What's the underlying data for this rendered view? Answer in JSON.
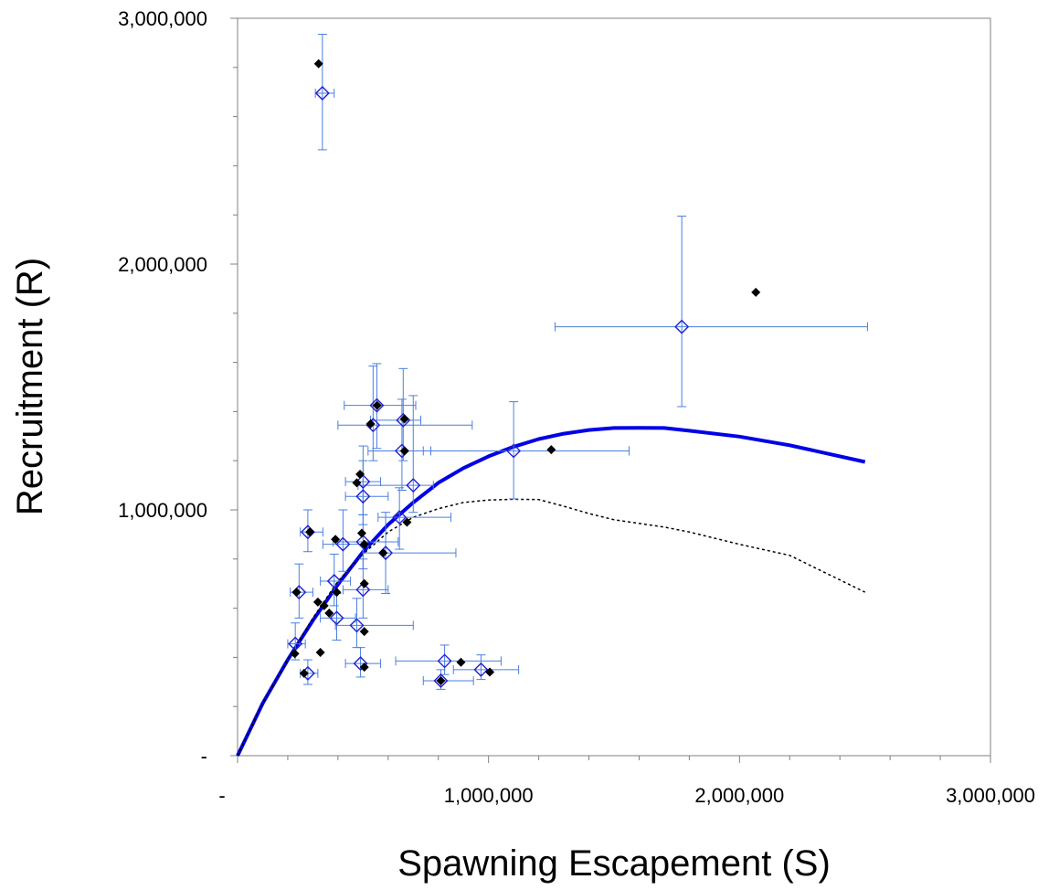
{
  "chart_data": {
    "type": "scatter",
    "xlabel": "Spawning Escapement (S)",
    "ylabel": "Recruitment (R)",
    "xlim": [
      0,
      3000000
    ],
    "ylim": [
      0,
      3000000
    ],
    "x_major_ticks": [
      0,
      1000000,
      2000000,
      3000000
    ],
    "x_tick_labels": [
      "-",
      "1,000,000",
      "2,000,000",
      "3,000,000"
    ],
    "y_major_ticks": [
      0,
      1000000,
      2000000,
      3000000
    ],
    "y_tick_labels": [
      "-",
      "1,000,000",
      "2,000,000",
      "3,000,000"
    ],
    "minor_tick_step": 200000,
    "grid": false,
    "legend": "none",
    "colors": {
      "observed": "#000000",
      "estimated": "#1f1fd6",
      "error_bars": "#4a7fe0",
      "fit_line": "#0000e6",
      "dashed_line": "#000000"
    },
    "series": [
      {
        "role": "observed",
        "marker": "filled-diamond",
        "points": [
          [
            323000,
            2815000
          ],
          [
            2065000,
            1885000
          ],
          [
            1250000,
            1245000
          ],
          [
            556000,
            1425000
          ],
          [
            530000,
            1350000
          ],
          [
            665000,
            1370000
          ],
          [
            665000,
            1240000
          ],
          [
            488000,
            1145000
          ],
          [
            475000,
            1110000
          ],
          [
            675000,
            950000
          ],
          [
            288000,
            910000
          ],
          [
            495000,
            905000
          ],
          [
            390000,
            880000
          ],
          [
            505000,
            860000
          ],
          [
            580000,
            825000
          ],
          [
            505000,
            700000
          ],
          [
            235000,
            665000
          ],
          [
            395000,
            665000
          ],
          [
            320000,
            625000
          ],
          [
            345000,
            610000
          ],
          [
            365000,
            580000
          ],
          [
            505000,
            505000
          ],
          [
            330000,
            420000
          ],
          [
            228000,
            415000
          ],
          [
            890000,
            380000
          ],
          [
            505000,
            360000
          ],
          [
            265000,
            335000
          ],
          [
            1005000,
            340000
          ],
          [
            810000,
            305000
          ]
        ]
      },
      {
        "role": "estimated",
        "marker": "open-diamond",
        "points": [
          {
            "x": 338000,
            "y": 2695000,
            "xerr": [
              310000,
              385000
            ],
            "yerr": [
              2465000,
              2935000
            ]
          },
          {
            "x": 1770000,
            "y": 1745000,
            "xerr": [
              1265000,
              2510000
            ],
            "yerr": [
              1420000,
              2195000
            ]
          },
          {
            "x": 1100000,
            "y": 1240000,
            "xerr": [
              740000,
              1560000
            ],
            "yerr": [
              1045000,
              1440000
            ]
          },
          {
            "x": 555000,
            "y": 1425000,
            "xerr": [
              425000,
              710000
            ],
            "yerr": [
              1250000,
              1595000
            ]
          },
          {
            "x": 540000,
            "y": 1345000,
            "xerr": [
              400000,
              935000
            ],
            "yerr": [
              1200000,
              1585000
            ]
          },
          {
            "x": 660000,
            "y": 1365000,
            "xerr": [
              530000,
              730000
            ],
            "yerr": [
              1200000,
              1575000
            ]
          },
          {
            "x": 655000,
            "y": 1240000,
            "xerr": [
              520000,
              770000
            ],
            "yerr": [
              1080000,
              1450000
            ]
          },
          {
            "x": 700000,
            "y": 1100000,
            "xerr": [
              480000,
              780000
            ],
            "yerr": [
              990000,
              1465000
            ]
          },
          {
            "x": 500000,
            "y": 1115000,
            "xerr": [
              430000,
              570000
            ],
            "yerr": [
              980000,
              1260000
            ]
          },
          {
            "x": 500000,
            "y": 1055000,
            "xerr": [
              430000,
              600000
            ],
            "yerr": [
              940000,
              1200000
            ]
          },
          {
            "x": 645000,
            "y": 970000,
            "xerr": [
              560000,
              850000
            ],
            "yerr": [
              840000,
              1090000
            ]
          },
          {
            "x": 280000,
            "y": 910000,
            "xerr": [
              250000,
              340000
            ],
            "yerr": [
              830000,
              1000000
            ]
          },
          {
            "x": 500000,
            "y": 870000,
            "xerr": [
              380000,
              640000
            ],
            "yerr": [
              760000,
              980000
            ]
          },
          {
            "x": 420000,
            "y": 860000,
            "xerr": [
              340000,
              520000
            ],
            "yerr": [
              750000,
              1000000
            ]
          },
          {
            "x": 590000,
            "y": 825000,
            "xerr": [
              500000,
              870000
            ],
            "yerr": [
              660000,
              990000
            ]
          },
          {
            "x": 385000,
            "y": 710000,
            "xerr": [
              330000,
              450000
            ],
            "yerr": [
              610000,
              820000
            ]
          },
          {
            "x": 500000,
            "y": 675000,
            "xerr": [
              420000,
              600000
            ],
            "yerr": [
              560000,
              800000
            ]
          },
          {
            "x": 245000,
            "y": 665000,
            "xerr": [
              210000,
              300000
            ],
            "yerr": [
              560000,
              780000
            ]
          },
          {
            "x": 395000,
            "y": 560000,
            "xerr": [
              330000,
              470000
            ],
            "yerr": [
              470000,
              660000
            ]
          },
          {
            "x": 475000,
            "y": 530000,
            "xerr": [
              390000,
              700000
            ],
            "yerr": [
              440000,
              640000
            ]
          },
          {
            "x": 230000,
            "y": 455000,
            "xerr": [
              200000,
              270000
            ],
            "yerr": [
              390000,
              540000
            ]
          },
          {
            "x": 825000,
            "y": 385000,
            "xerr": [
              630000,
              1050000
            ],
            "yerr": [
              330000,
              450000
            ]
          },
          {
            "x": 490000,
            "y": 375000,
            "xerr": [
              430000,
              570000
            ],
            "yerr": [
              320000,
              440000
            ]
          },
          {
            "x": 970000,
            "y": 350000,
            "xerr": [
              860000,
              1120000
            ],
            "yerr": [
              310000,
              410000
            ]
          },
          {
            "x": 280000,
            "y": 335000,
            "xerr": [
              250000,
              320000
            ],
            "yerr": [
              290000,
              390000
            ]
          },
          {
            "x": 810000,
            "y": 305000,
            "xerr": [
              740000,
              940000
            ],
            "yerr": [
              270000,
              350000
            ]
          }
        ]
      }
    ],
    "curves": [
      {
        "role": "fit",
        "style": "solid",
        "points": [
          [
            0,
            0
          ],
          [
            100000,
            213000
          ],
          [
            200000,
            390000
          ],
          [
            300000,
            550000
          ],
          [
            400000,
            697000
          ],
          [
            500000,
            829000
          ],
          [
            600000,
            940000
          ],
          [
            700000,
            1030000
          ],
          [
            800000,
            1110000
          ],
          [
            900000,
            1170000
          ],
          [
            1000000,
            1218000
          ],
          [
            1100000,
            1257000
          ],
          [
            1200000,
            1288000
          ],
          [
            1300000,
            1310000
          ],
          [
            1400000,
            1325000
          ],
          [
            1500000,
            1333000
          ],
          [
            1600000,
            1334000
          ],
          [
            1700000,
            1333000
          ],
          [
            1800000,
            1322000
          ],
          [
            2000000,
            1298000
          ],
          [
            2200000,
            1263000
          ],
          [
            2500000,
            1195000
          ]
        ]
      },
      {
        "role": "reference",
        "style": "dotted",
        "points": [
          [
            0,
            0
          ],
          [
            100000,
            215000
          ],
          [
            200000,
            390000
          ],
          [
            300000,
            560000
          ],
          [
            400000,
            710000
          ],
          [
            500000,
            820000
          ],
          [
            600000,
            910000
          ],
          [
            700000,
            970000
          ],
          [
            800000,
            1005000
          ],
          [
            900000,
            1030000
          ],
          [
            1000000,
            1040000
          ],
          [
            1100000,
            1043000
          ],
          [
            1200000,
            1042000
          ],
          [
            1300000,
            1015000
          ],
          [
            1400000,
            985000
          ],
          [
            1500000,
            960000
          ],
          [
            1700000,
            930000
          ],
          [
            1800000,
            910000
          ],
          [
            2000000,
            860000
          ],
          [
            2200000,
            815000
          ],
          [
            2500000,
            665000
          ]
        ]
      }
    ]
  }
}
